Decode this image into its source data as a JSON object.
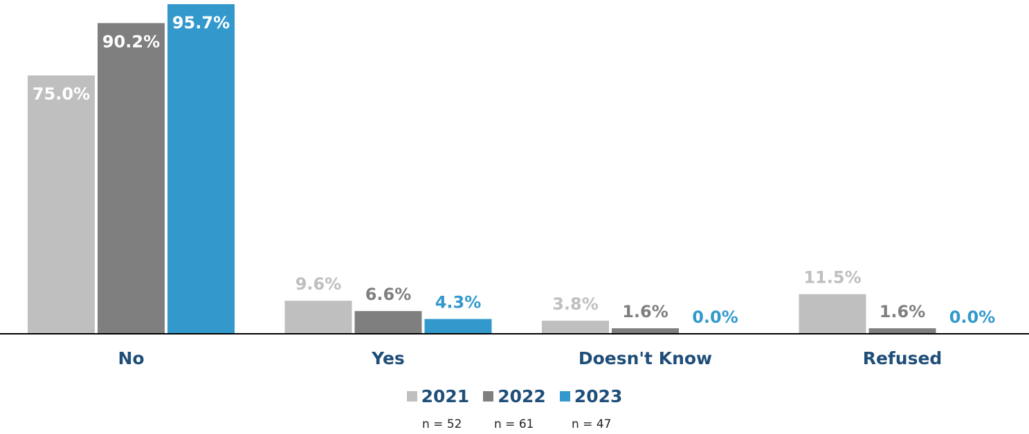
{
  "chart_data": {
    "type": "bar",
    "categories": [
      "No",
      "Yes",
      "Doesn't Know",
      "Refused"
    ],
    "series": [
      {
        "name": "2021",
        "values": [
          75.0,
          9.6,
          3.8,
          11.5
        ],
        "labels": [
          "75.0%",
          "9.6%",
          "3.8%",
          "11.5%"
        ],
        "color": "#bfbfbf"
      },
      {
        "name": "2022",
        "values": [
          90.2,
          6.6,
          1.6,
          1.6
        ],
        "labels": [
          "90.2%",
          "6.6%",
          "1.6%",
          "1.6%"
        ],
        "color": "#7f7f7f"
      },
      {
        "name": "2023",
        "values": [
          95.7,
          4.3,
          0.0,
          0.0
        ],
        "labels": [
          "95.7%",
          "4.3%",
          "0.0%",
          "0.0%"
        ],
        "color": "#3399cc"
      }
    ],
    "ylim": [
      0,
      100
    ],
    "grid": false,
    "legend_position": "bottom-center",
    "sample_sizes": [
      "n = 52",
      "n = 61",
      "n = 47"
    ]
  },
  "colors": {
    "category_label": "#1f4e79",
    "label_inside": "#ffffff",
    "axis": "#000000"
  }
}
